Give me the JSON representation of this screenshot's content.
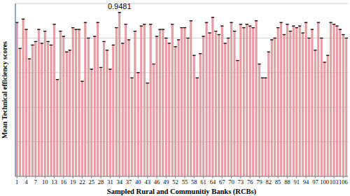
{
  "chart_data": {
    "type": "bar",
    "x_label": "Sampled Rural and Communitiy Banks (RCBs)",
    "y_label": "Mean Technical efficiency scores",
    "annotations": [
      {
        "text": "0.9481",
        "index": 33
      }
    ],
    "categories": [
      "1",
      null,
      null,
      "4",
      null,
      null,
      "7",
      null,
      null,
      "10",
      null,
      null,
      "13",
      null,
      null,
      "16",
      null,
      null,
      "19",
      null,
      null,
      "22",
      null,
      null,
      "25",
      null,
      null,
      "28",
      null,
      null,
      "31",
      null,
      null,
      "34",
      null,
      null,
      "37",
      null,
      null,
      "40",
      null,
      null,
      "43",
      null,
      null,
      "46",
      null,
      null,
      "49",
      null,
      null,
      "52",
      null,
      null,
      "55",
      null,
      null,
      "58",
      null,
      null,
      "61",
      null,
      null,
      "64",
      null,
      null,
      "67",
      null,
      null,
      "70",
      null,
      null,
      "73",
      null,
      null,
      "76",
      null,
      null,
      "79",
      null,
      null,
      "82",
      null,
      null,
      "85",
      null,
      null,
      "88",
      null,
      null,
      "91",
      null,
      null,
      "94",
      null,
      null,
      "97",
      null,
      null,
      "100",
      null,
      null,
      "103",
      null,
      null,
      "106",
      null
    ],
    "values": [
      0.89,
      0.74,
      0.91,
      0.85,
      0.68,
      0.76,
      0.78,
      0.85,
      0.77,
      0.84,
      0.78,
      0.76,
      0.88,
      0.56,
      0.84,
      0.81,
      0.72,
      0.73,
      0.86,
      0.85,
      0.85,
      0.55,
      0.89,
      0.8,
      0.62,
      0.81,
      0.89,
      0.63,
      0.78,
      0.73,
      0.62,
      0.76,
      0.86,
      0.9481,
      0.77,
      0.88,
      0.79,
      0.57,
      0.84,
      0.6,
      0.87,
      0.88,
      0.54,
      0.88,
      0.65,
      0.81,
      0.85,
      0.85,
      0.8,
      0.77,
      0.88,
      0.75,
      0.79,
      0.86,
      0.86,
      0.8,
      0.9,
      0.7,
      0.57,
      0.71,
      0.81,
      0.89,
      0.83,
      0.92,
      0.84,
      0.82,
      0.87,
      0.77,
      0.8,
      0.89,
      0.84,
      0.67,
      0.88,
      0.86,
      0.88,
      0.87,
      0.86,
      0.9,
      0.65,
      0.57,
      0.57,
      0.72,
      0.79,
      0.8,
      0.86,
      0.89,
      0.82,
      0.88,
      0.84,
      0.87,
      0.86,
      0.87,
      0.83,
      0.89,
      0.8,
      0.85,
      0.73,
      0.89,
      0.8,
      0.66,
      0.7,
      0.89,
      0.88,
      0.87,
      0.85,
      0.82,
      0.8
    ],
    "color": "#e8a3a8",
    "marker": "dash",
    "ylim": [
      0,
      1
    ],
    "yticks": [
      0,
      0.2,
      0.4,
      0.6,
      0.8,
      1
    ],
    "grid": true,
    "tick_labels": "x"
  }
}
